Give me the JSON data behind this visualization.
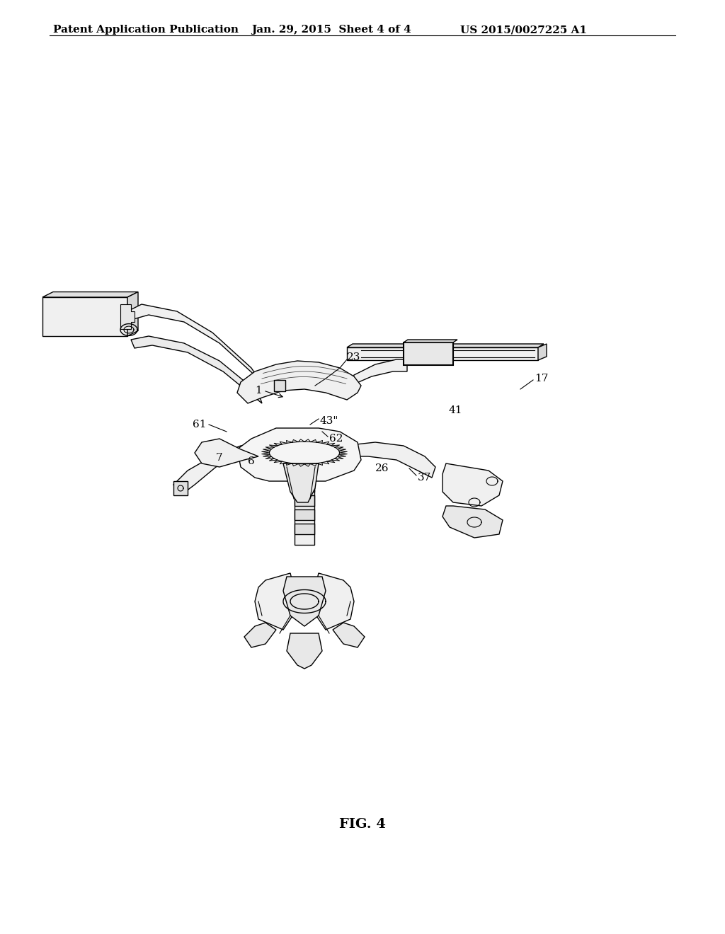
{
  "background_color": "#ffffff",
  "header_left": "Patent Application Publication",
  "header_center": "Jan. 29, 2015  Sheet 4 of 4",
  "header_right": "US 2015/0027225 A1",
  "header_fontsize": 11,
  "figure_label": "FIG. 4",
  "figure_label_fontsize": 14
}
